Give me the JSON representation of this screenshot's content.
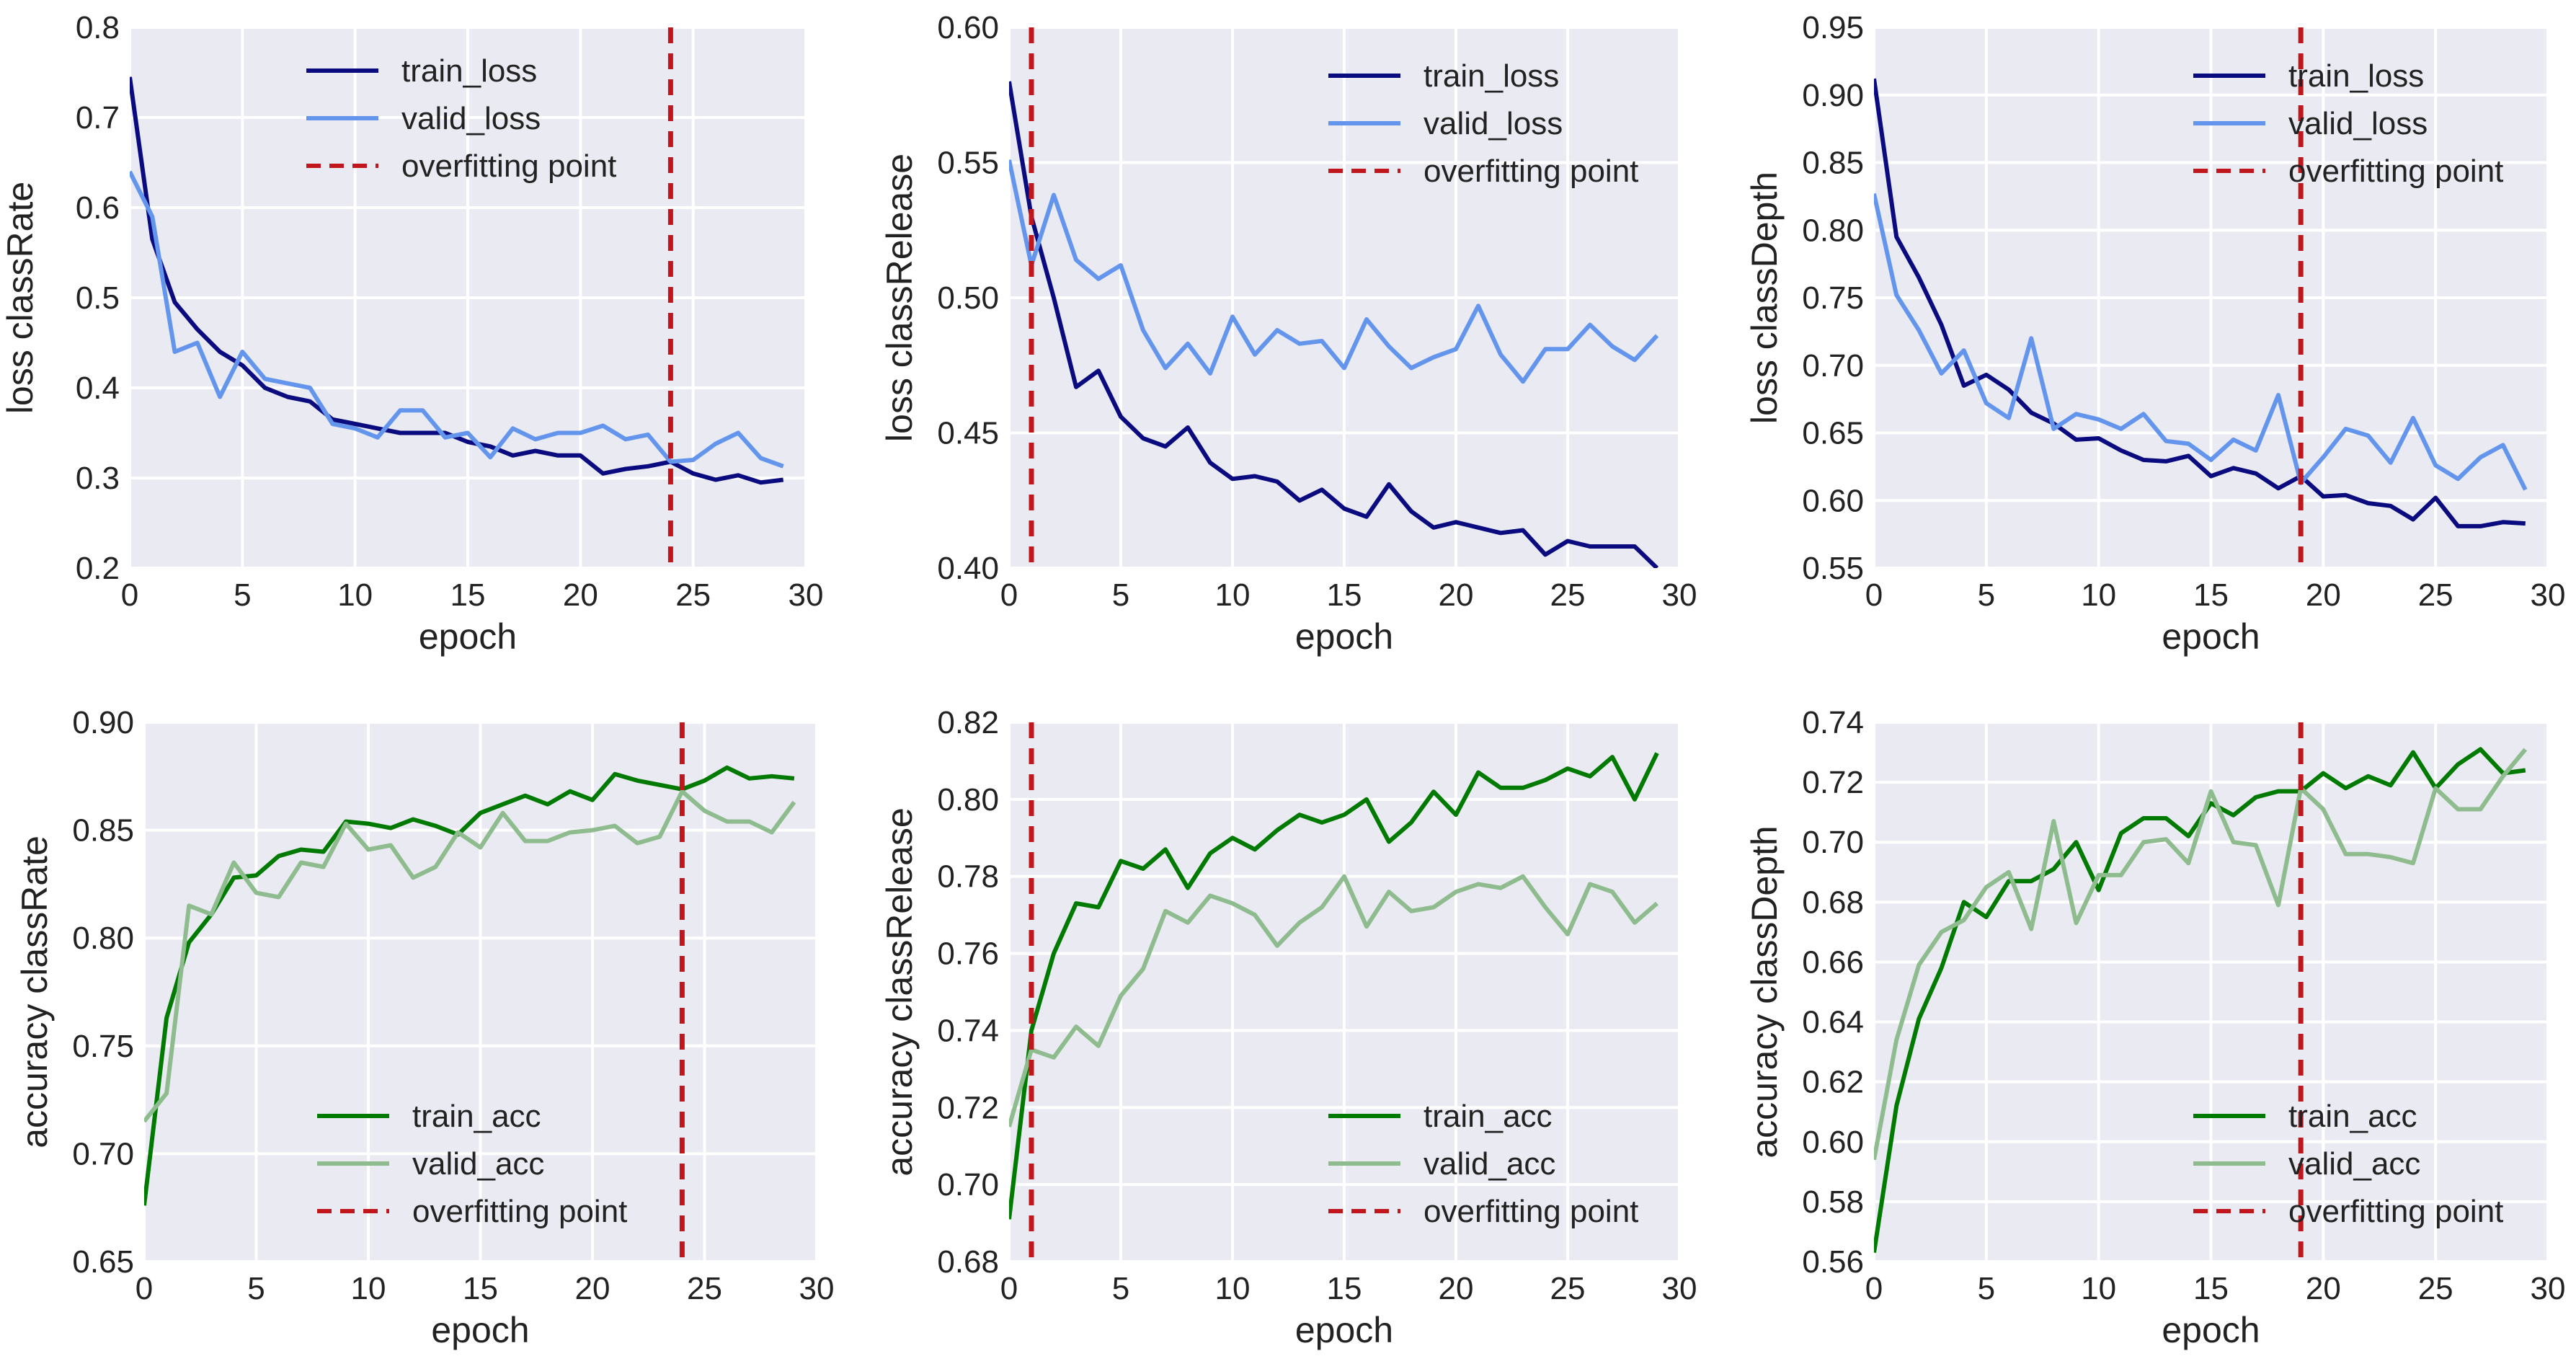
{
  "colors": {
    "plot_bg": "#EAEAF2",
    "grid": "#FFFFFF",
    "train_loss": "#0B0B80",
    "valid_loss": "#6495ED",
    "train_acc": "#007A00",
    "valid_acc": "#8FBC8F",
    "overfit": "#C0161C"
  },
  "chart_data": [
    {
      "type": "line",
      "title": "",
      "xlabel": "epoch",
      "ylabel": "loss classRate",
      "xlim": [
        0,
        30
      ],
      "ylim": [
        0.2,
        0.8
      ],
      "xticks": [
        "0",
        "5",
        "10",
        "15",
        "20",
        "25",
        "30"
      ],
      "yticks": [
        "0.2",
        "0.3",
        "0.4",
        "0.5",
        "0.6",
        "0.7",
        "0.8"
      ],
      "legend_position": "top-center",
      "overfitting_point": 24,
      "series": [
        {
          "name": "train_loss",
          "color_key": "train_loss",
          "values": [
            0.745,
            0.565,
            0.495,
            0.465,
            0.44,
            0.425,
            0.4,
            0.39,
            0.385,
            0.365,
            0.36,
            0.355,
            0.35,
            0.35,
            0.35,
            0.34,
            0.335,
            0.325,
            0.33,
            0.325,
            0.325,
            0.305,
            0.31,
            0.313,
            0.318,
            0.305,
            0.298,
            0.303,
            0.295,
            0.298
          ]
        },
        {
          "name": "valid_loss",
          "color_key": "valid_loss",
          "values": [
            0.64,
            0.59,
            0.44,
            0.45,
            0.39,
            0.44,
            0.41,
            0.405,
            0.4,
            0.36,
            0.355,
            0.345,
            0.375,
            0.375,
            0.345,
            0.35,
            0.323,
            0.355,
            0.343,
            0.35,
            0.35,
            0.358,
            0.343,
            0.348,
            0.318,
            0.32,
            0.338,
            0.35,
            0.322,
            0.313
          ]
        },
        {
          "name": "overfitting point",
          "style": "dashed-vertical",
          "color_key": "overfit",
          "x": 24
        }
      ]
    },
    {
      "type": "line",
      "title": "",
      "xlabel": "epoch",
      "ylabel": "loss classRelease",
      "xlim": [
        0,
        30
      ],
      "ylim": [
        0.4,
        0.6
      ],
      "xticks": [
        "0",
        "5",
        "10",
        "15",
        "20",
        "25",
        "30"
      ],
      "yticks": [
        "0.40",
        "0.45",
        "0.50",
        "0.55",
        "0.60"
      ],
      "legend_position": "top-right",
      "overfitting_point": 1,
      "series": [
        {
          "name": "train_loss",
          "color_key": "train_loss",
          "values": [
            0.58,
            0.53,
            0.5,
            0.467,
            0.473,
            0.456,
            0.448,
            0.445,
            0.452,
            0.439,
            0.433,
            0.434,
            0.432,
            0.425,
            0.429,
            0.422,
            0.419,
            0.431,
            0.421,
            0.415,
            0.417,
            0.415,
            0.413,
            0.414,
            0.405,
            0.41,
            0.408,
            0.408,
            0.408,
            0.4
          ]
        },
        {
          "name": "valid_loss",
          "color_key": "valid_loss",
          "values": [
            0.551,
            0.512,
            0.538,
            0.514,
            0.507,
            0.512,
            0.488,
            0.474,
            0.483,
            0.472,
            0.493,
            0.479,
            0.488,
            0.483,
            0.484,
            0.474,
            0.492,
            0.482,
            0.474,
            0.478,
            0.481,
            0.497,
            0.479,
            0.469,
            0.481,
            0.481,
            0.49,
            0.482,
            0.477,
            0.486
          ]
        },
        {
          "name": "overfitting point",
          "style": "dashed-vertical",
          "color_key": "overfit",
          "x": 1
        }
      ]
    },
    {
      "type": "line",
      "title": "",
      "xlabel": "epoch",
      "ylabel": "loss classDepth",
      "xlim": [
        0,
        30
      ],
      "ylim": [
        0.55,
        0.95
      ],
      "xticks": [
        "0",
        "5",
        "10",
        "15",
        "20",
        "25",
        "30"
      ],
      "yticks": [
        "0.55",
        "0.60",
        "0.65",
        "0.70",
        "0.75",
        "0.80",
        "0.85",
        "0.90",
        "0.95"
      ],
      "legend_position": "top-right",
      "overfitting_point": 19,
      "series": [
        {
          "name": "train_loss",
          "color_key": "train_loss",
          "values": [
            0.912,
            0.795,
            0.765,
            0.73,
            0.685,
            0.693,
            0.682,
            0.665,
            0.657,
            0.645,
            0.646,
            0.637,
            0.63,
            0.629,
            0.633,
            0.618,
            0.624,
            0.62,
            0.609,
            0.618,
            0.603,
            0.604,
            0.598,
            0.596,
            0.586,
            0.602,
            0.581,
            0.581,
            0.584,
            0.583
          ]
        },
        {
          "name": "valid_loss",
          "color_key": "valid_loss",
          "values": [
            0.827,
            0.752,
            0.726,
            0.694,
            0.711,
            0.672,
            0.661,
            0.72,
            0.653,
            0.664,
            0.66,
            0.653,
            0.664,
            0.644,
            0.642,
            0.63,
            0.645,
            0.637,
            0.678,
            0.613,
            0.632,
            0.653,
            0.648,
            0.628,
            0.661,
            0.626,
            0.616,
            0.632,
            0.641,
            0.608
          ]
        },
        {
          "name": "overfitting point",
          "style": "dashed-vertical",
          "color_key": "overfit",
          "x": 19
        }
      ]
    },
    {
      "type": "line",
      "title": "",
      "xlabel": "epoch",
      "ylabel": "accuracy classRate",
      "xlim": [
        0,
        30
      ],
      "ylim": [
        0.65,
        0.9
      ],
      "xticks": [
        "0",
        "5",
        "10",
        "15",
        "20",
        "25",
        "30"
      ],
      "yticks": [
        "0.65",
        "0.70",
        "0.75",
        "0.80",
        "0.85",
        "0.90"
      ],
      "legend_position": "bottom-center",
      "overfitting_point": 24,
      "series": [
        {
          "name": "train_acc",
          "color_key": "train_acc",
          "values": [
            0.676,
            0.763,
            0.798,
            0.811,
            0.828,
            0.829,
            0.838,
            0.841,
            0.84,
            0.854,
            0.853,
            0.851,
            0.855,
            0.852,
            0.848,
            0.858,
            0.862,
            0.866,
            0.862,
            0.868,
            0.864,
            0.876,
            0.873,
            0.871,
            0.869,
            0.873,
            0.879,
            0.874,
            0.875,
            0.874
          ]
        },
        {
          "name": "valid_acc",
          "color_key": "valid_acc",
          "values": [
            0.715,
            0.728,
            0.815,
            0.811,
            0.835,
            0.821,
            0.819,
            0.835,
            0.833,
            0.853,
            0.841,
            0.843,
            0.828,
            0.833,
            0.849,
            0.842,
            0.858,
            0.845,
            0.845,
            0.849,
            0.85,
            0.852,
            0.844,
            0.847,
            0.868,
            0.859,
            0.854,
            0.854,
            0.849,
            0.863
          ]
        },
        {
          "name": "overfitting point",
          "style": "dashed-vertical",
          "color_key": "overfit",
          "x": 24
        }
      ]
    },
    {
      "type": "line",
      "title": "",
      "xlabel": "epoch",
      "ylabel": "accuracy classRelease",
      "xlim": [
        0,
        30
      ],
      "ylim": [
        0.68,
        0.82
      ],
      "xticks": [
        "0",
        "5",
        "10",
        "15",
        "20",
        "25",
        "30"
      ],
      "yticks": [
        "0.68",
        "0.70",
        "0.72",
        "0.74",
        "0.76",
        "0.78",
        "0.80",
        "0.82"
      ],
      "legend_position": "bottom-right",
      "overfitting_point": 1,
      "series": [
        {
          "name": "train_acc",
          "color_key": "train_acc",
          "values": [
            0.691,
            0.74,
            0.76,
            0.773,
            0.772,
            0.784,
            0.782,
            0.787,
            0.777,
            0.786,
            0.79,
            0.787,
            0.792,
            0.796,
            0.794,
            0.796,
            0.8,
            0.789,
            0.794,
            0.802,
            0.796,
            0.807,
            0.803,
            0.803,
            0.805,
            0.808,
            0.806,
            0.811,
            0.8,
            0.812
          ]
        },
        {
          "name": "valid_acc",
          "color_key": "valid_acc",
          "values": [
            0.715,
            0.735,
            0.733,
            0.741,
            0.736,
            0.749,
            0.756,
            0.771,
            0.768,
            0.775,
            0.773,
            0.77,
            0.762,
            0.768,
            0.772,
            0.78,
            0.767,
            0.776,
            0.771,
            0.772,
            0.776,
            0.778,
            0.777,
            0.78,
            0.772,
            0.765,
            0.778,
            0.776,
            0.768,
            0.773
          ]
        },
        {
          "name": "overfitting point",
          "style": "dashed-vertical",
          "color_key": "overfit",
          "x": 1
        }
      ]
    },
    {
      "type": "line",
      "title": "",
      "xlabel": "epoch",
      "ylabel": "accuracy classDepth",
      "xlim": [
        0,
        30
      ],
      "ylim": [
        0.56,
        0.74
      ],
      "xticks": [
        "0",
        "5",
        "10",
        "15",
        "20",
        "25",
        "30"
      ],
      "yticks": [
        "0.56",
        "0.58",
        "0.60",
        "0.62",
        "0.64",
        "0.66",
        "0.68",
        "0.70",
        "0.72",
        "0.74"
      ],
      "legend_position": "bottom-right",
      "overfitting_point": 19,
      "series": [
        {
          "name": "train_acc",
          "color_key": "train_acc",
          "values": [
            0.563,
            0.612,
            0.641,
            0.658,
            0.68,
            0.675,
            0.687,
            0.687,
            0.691,
            0.7,
            0.684,
            0.703,
            0.708,
            0.708,
            0.702,
            0.713,
            0.709,
            0.715,
            0.717,
            0.717,
            0.723,
            0.718,
            0.722,
            0.719,
            0.73,
            0.718,
            0.726,
            0.731,
            0.723,
            0.724
          ]
        },
        {
          "name": "valid_acc",
          "color_key": "valid_acc",
          "values": [
            0.594,
            0.634,
            0.659,
            0.67,
            0.674,
            0.685,
            0.69,
            0.671,
            0.707,
            0.673,
            0.689,
            0.689,
            0.7,
            0.701,
            0.693,
            0.717,
            0.7,
            0.699,
            0.679,
            0.718,
            0.711,
            0.696,
            0.696,
            0.695,
            0.693,
            0.718,
            0.711,
            0.711,
            0.722,
            0.731
          ]
        },
        {
          "name": "overfitting point",
          "style": "dashed-vertical",
          "color_key": "overfit",
          "x": 19
        }
      ]
    }
  ]
}
